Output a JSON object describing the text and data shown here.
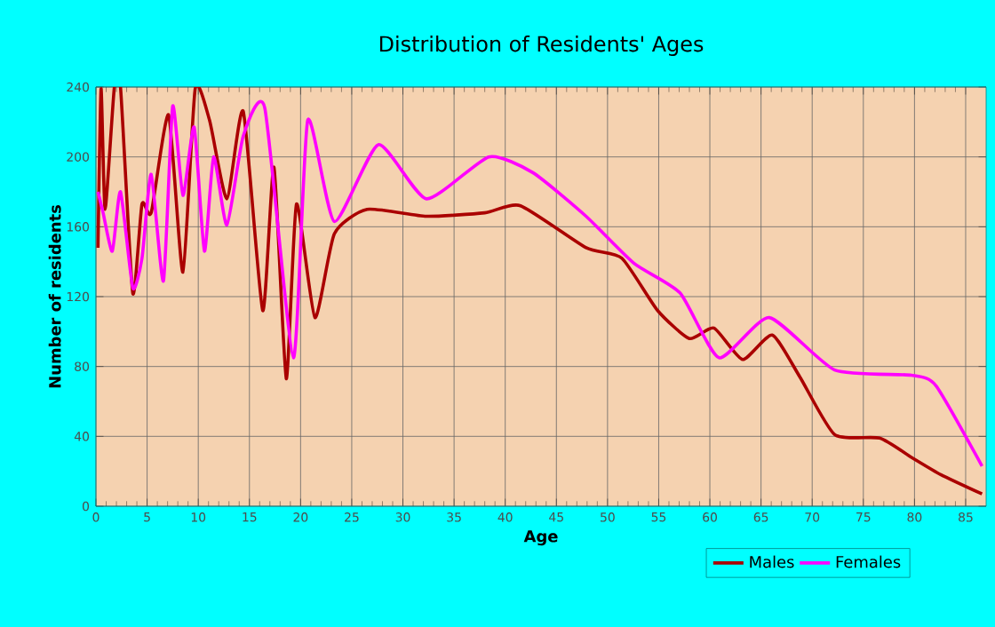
{
  "chart_data": {
    "type": "line",
    "title": "Distribution of Residents' Ages",
    "xlabel": "Age",
    "ylabel": "Number of residents",
    "xlim": [
      0,
      87
    ],
    "xticks": [
      0,
      5,
      10,
      15,
      20,
      25,
      30,
      35,
      40,
      45,
      50,
      55,
      60,
      65,
      70,
      75,
      80,
      85
    ],
    "ylim": [
      0,
      240
    ],
    "yticks": [
      0,
      40,
      80,
      120,
      160,
      200,
      240
    ],
    "grid": true,
    "legend": "bottom",
    "marker": "none",
    "line_style": "solid",
    "series": [
      {
        "name": "Males",
        "color": "#aa0000",
        "x": [
          0.2,
          0.5,
          0.9,
          1.8,
          2.4,
          3.6,
          4.5,
          5.4,
          7.1,
          8.5,
          9.7,
          11.1,
          12.8,
          14.4,
          16.3,
          17.4,
          18.6,
          19.6,
          21.4,
          23.3,
          26.5,
          32.3,
          38,
          41.5,
          47.9,
          51.4,
          54.9,
          58,
          60.4,
          63.2,
          66.1,
          68.8,
          72.2,
          76.6,
          79.7,
          82.6,
          86.6
        ],
        "values": [
          148,
          239,
          170,
          240,
          240,
          122,
          173,
          168,
          224,
          134,
          239,
          221,
          176,
          226,
          112,
          194,
          73,
          173,
          108,
          156,
          170,
          166,
          168,
          172,
          148,
          142,
          112,
          96,
          102,
          84,
          98,
          74,
          41,
          39,
          28,
          18,
          7
        ]
      },
      {
        "name": "Females",
        "color": "#ff00ff",
        "x": [
          0.2,
          0.7,
          1.6,
          2.4,
          3.6,
          4.5,
          5.4,
          6.6,
          7.5,
          8.5,
          9.6,
          10.6,
          11.5,
          12.8,
          14.4,
          16.5,
          19.3,
          20.7,
          23.3,
          27.6,
          32.3,
          38.4,
          42.7,
          47.9,
          52.6,
          57.1,
          60.9,
          65.8,
          72.2,
          79.7,
          82.1,
          86.6
        ],
        "values": [
          180,
          168,
          146,
          180,
          125,
          142,
          190,
          129,
          229,
          178,
          217,
          146,
          200,
          161,
          212,
          228,
          85,
          221,
          163,
          207,
          176,
          200,
          191,
          166,
          139,
          122,
          85,
          108,
          78,
          75,
          69,
          23
        ]
      }
    ]
  }
}
